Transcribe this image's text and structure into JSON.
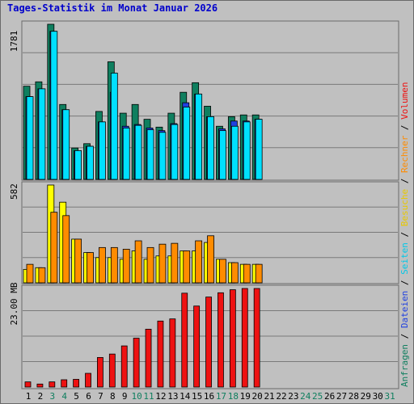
{
  "title": "Tages-Statistik im Monat Januar 2026",
  "colors": {
    "background": "#c0c0c0",
    "grid": "#7a7a7a",
    "anfragen": "#0f7f5f",
    "dateien": "#2040e0",
    "seiten": "#00e0ff",
    "besuche": "#ffff00",
    "rechner": "#ff8c00",
    "volumen": "#ee1111",
    "weekend_day": "#0f7f5f",
    "weekday": "#000000"
  },
  "side_legend_right_top": [
    {
      "text": "Anfragen",
      "color": "#0f7f5f"
    },
    {
      "text": " / ",
      "color": "#000000"
    },
    {
      "text": "Dateien",
      "color": "#2040e0"
    },
    {
      "text": " / ",
      "color": "#000000"
    },
    {
      "text": "Seiten",
      "color": "#00c8e8"
    },
    {
      "text": " / ",
      "color": "#000000"
    },
    {
      "text": "Besuche",
      "color": "#e8c800"
    },
    {
      "text": " / ",
      "color": "#000000"
    },
    {
      "text": "Rechner",
      "color": "#ff8c00"
    },
    {
      "text": " / ",
      "color": "#000000"
    },
    {
      "text": "Volumen",
      "color": "#ee1111"
    }
  ],
  "chart_data": [
    {
      "type": "bar",
      "panel": "top",
      "ymax_label": "1781",
      "ylim": [
        0,
        1781
      ],
      "categories": [
        "1",
        "2",
        "3",
        "4",
        "5",
        "6",
        "7",
        "8",
        "9",
        "10",
        "11",
        "12",
        "13",
        "14",
        "15",
        "16",
        "17",
        "18",
        "19",
        "20",
        "21",
        "22",
        "23",
        "24",
        "25",
        "26",
        "27",
        "28",
        "29",
        "30",
        "31"
      ],
      "weekend_days": [
        "3",
        "4",
        "10",
        "11",
        "17",
        "18",
        "24",
        "25",
        "31"
      ],
      "series": [
        {
          "name": "Anfragen",
          "values": [
            1070,
            1120,
            1781,
            860,
            360,
            410,
            780,
            1350,
            760,
            860,
            690,
            600,
            760,
            1000,
            1110,
            840,
            610,
            720,
            740,
            740,
            null,
            null,
            null,
            null,
            null,
            null,
            null,
            null,
            null,
            null,
            null
          ]
        },
        {
          "name": "Dateien",
          "values": [
            950,
            1040,
            1700,
            800,
            330,
            380,
            660,
            1000,
            610,
            630,
            590,
            560,
            640,
            880,
            980,
            720,
            580,
            670,
            670,
            690,
            null,
            null,
            null,
            null,
            null,
            null,
            null,
            null,
            null,
            null,
            null
          ]
        },
        {
          "name": "Seiten",
          "values": [
            950,
            1040,
            1700,
            800,
            330,
            380,
            660,
            1220,
            590,
            620,
            570,
            540,
            630,
            830,
            980,
            720,
            560,
            610,
            660,
            690,
            null,
            null,
            null,
            null,
            null,
            null,
            null,
            null,
            null,
            null,
            null
          ]
        }
      ]
    },
    {
      "type": "bar",
      "panel": "middle",
      "ymax_label": "582",
      "ylim": [
        0,
        582
      ],
      "series": [
        {
          "name": "Besuche",
          "values": [
            80,
            90,
            582,
            480,
            260,
            180,
            150,
            150,
            140,
            190,
            140,
            160,
            160,
            190,
            190,
            240,
            140,
            120,
            110,
            110,
            null,
            null,
            null,
            null,
            null,
            null,
            null,
            null,
            null,
            null,
            null
          ]
        },
        {
          "name": "Rechner",
          "values": [
            110,
            90,
            420,
            400,
            260,
            180,
            210,
            210,
            200,
            250,
            210,
            230,
            235,
            190,
            250,
            280,
            140,
            120,
            110,
            110,
            null,
            null,
            null,
            null,
            null,
            null,
            null,
            null,
            null,
            null,
            null
          ]
        }
      ]
    },
    {
      "type": "bar",
      "panel": "bottom",
      "ymax_label": "23.00 MB",
      "ylim": [
        0,
        23.0
      ],
      "series": [
        {
          "name": "Volumen",
          "values": [
            1.2,
            0.7,
            1.2,
            1.7,
            1.8,
            3.2,
            6.9,
            7.7,
            9.6,
            11.4,
            13.5,
            15.4,
            15.9,
            21.9,
            18.9,
            21.0,
            22.0,
            22.7,
            23.0,
            23.0,
            null,
            null,
            null,
            null,
            null,
            null,
            null,
            null,
            null,
            null,
            null
          ]
        }
      ]
    }
  ]
}
